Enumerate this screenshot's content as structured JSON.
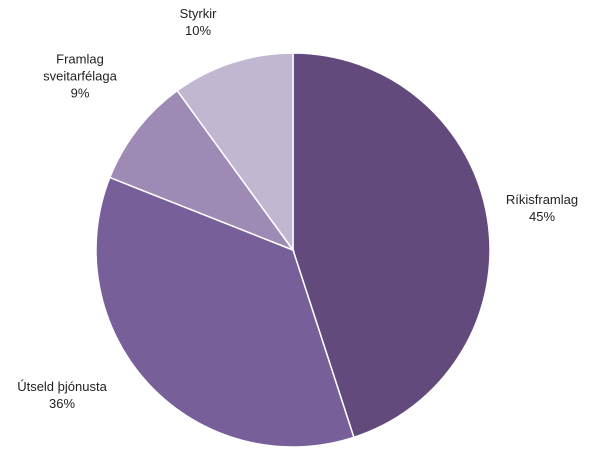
{
  "chart_data": {
    "type": "pie",
    "title": "",
    "slices": [
      {
        "name": "Ríkisframlag",
        "value": 45,
        "label": "45%",
        "color": "#624b7c"
      },
      {
        "name": "Útseld þjónusta",
        "value": 36,
        "label": "36%",
        "color": "#775f99"
      },
      {
        "name": "Framlag sveitarfélaga",
        "value": 9,
        "label": "9%",
        "color": "#9d8bb5"
      },
      {
        "name": "Styrkir",
        "value": 10,
        "label": "10%",
        "color": "#c2b7d1"
      }
    ],
    "label_lines": [
      [
        "Ríkisframlag",
        "45%"
      ],
      [
        "Útseld þjónusta",
        "36%"
      ],
      [
        "Framlag",
        "sveitarfélaga",
        "9%"
      ],
      [
        "Styrkir",
        "10%"
      ]
    ],
    "start_position": "12 o'clock",
    "direction": "clockwise",
    "legend": "none",
    "slice_border_color": "#ffffff"
  }
}
